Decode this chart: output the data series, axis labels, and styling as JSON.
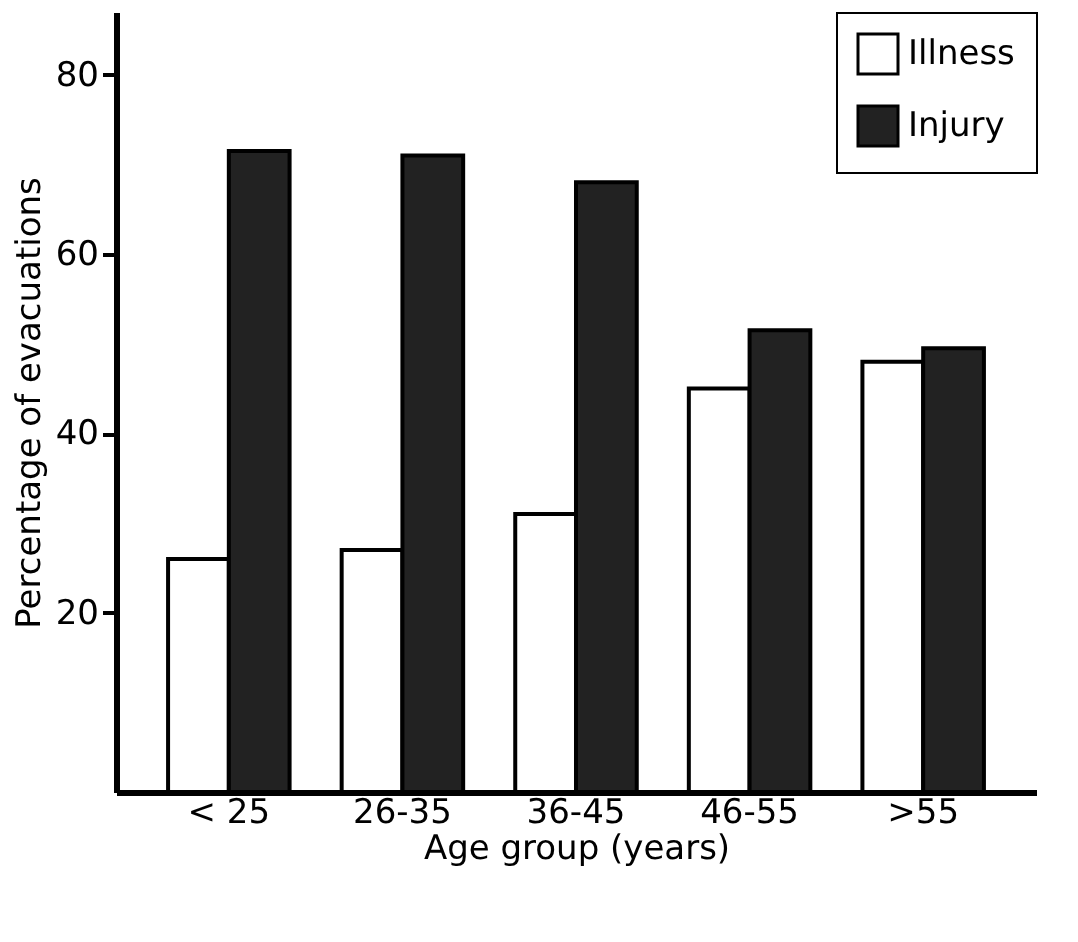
{
  "chart_data": {
    "type": "bar",
    "xlabel": "Age group (years)",
    "ylabel": "Percentage of evacuations",
    "categories": [
      "< 25",
      "26-35",
      "36-45",
      "46-55",
      ">55"
    ],
    "series": [
      {
        "name": "Illness",
        "color": "#ffffff",
        "values": [
          26,
          27,
          31,
          45,
          48
        ]
      },
      {
        "name": "Injury",
        "color": "#222222",
        "values": [
          71.5,
          71,
          68,
          51.5,
          49.5
        ]
      }
    ],
    "ylim": [
      0,
      87
    ],
    "yticks": [
      20,
      40,
      60,
      80
    ],
    "grid": false,
    "legend": "top right"
  }
}
